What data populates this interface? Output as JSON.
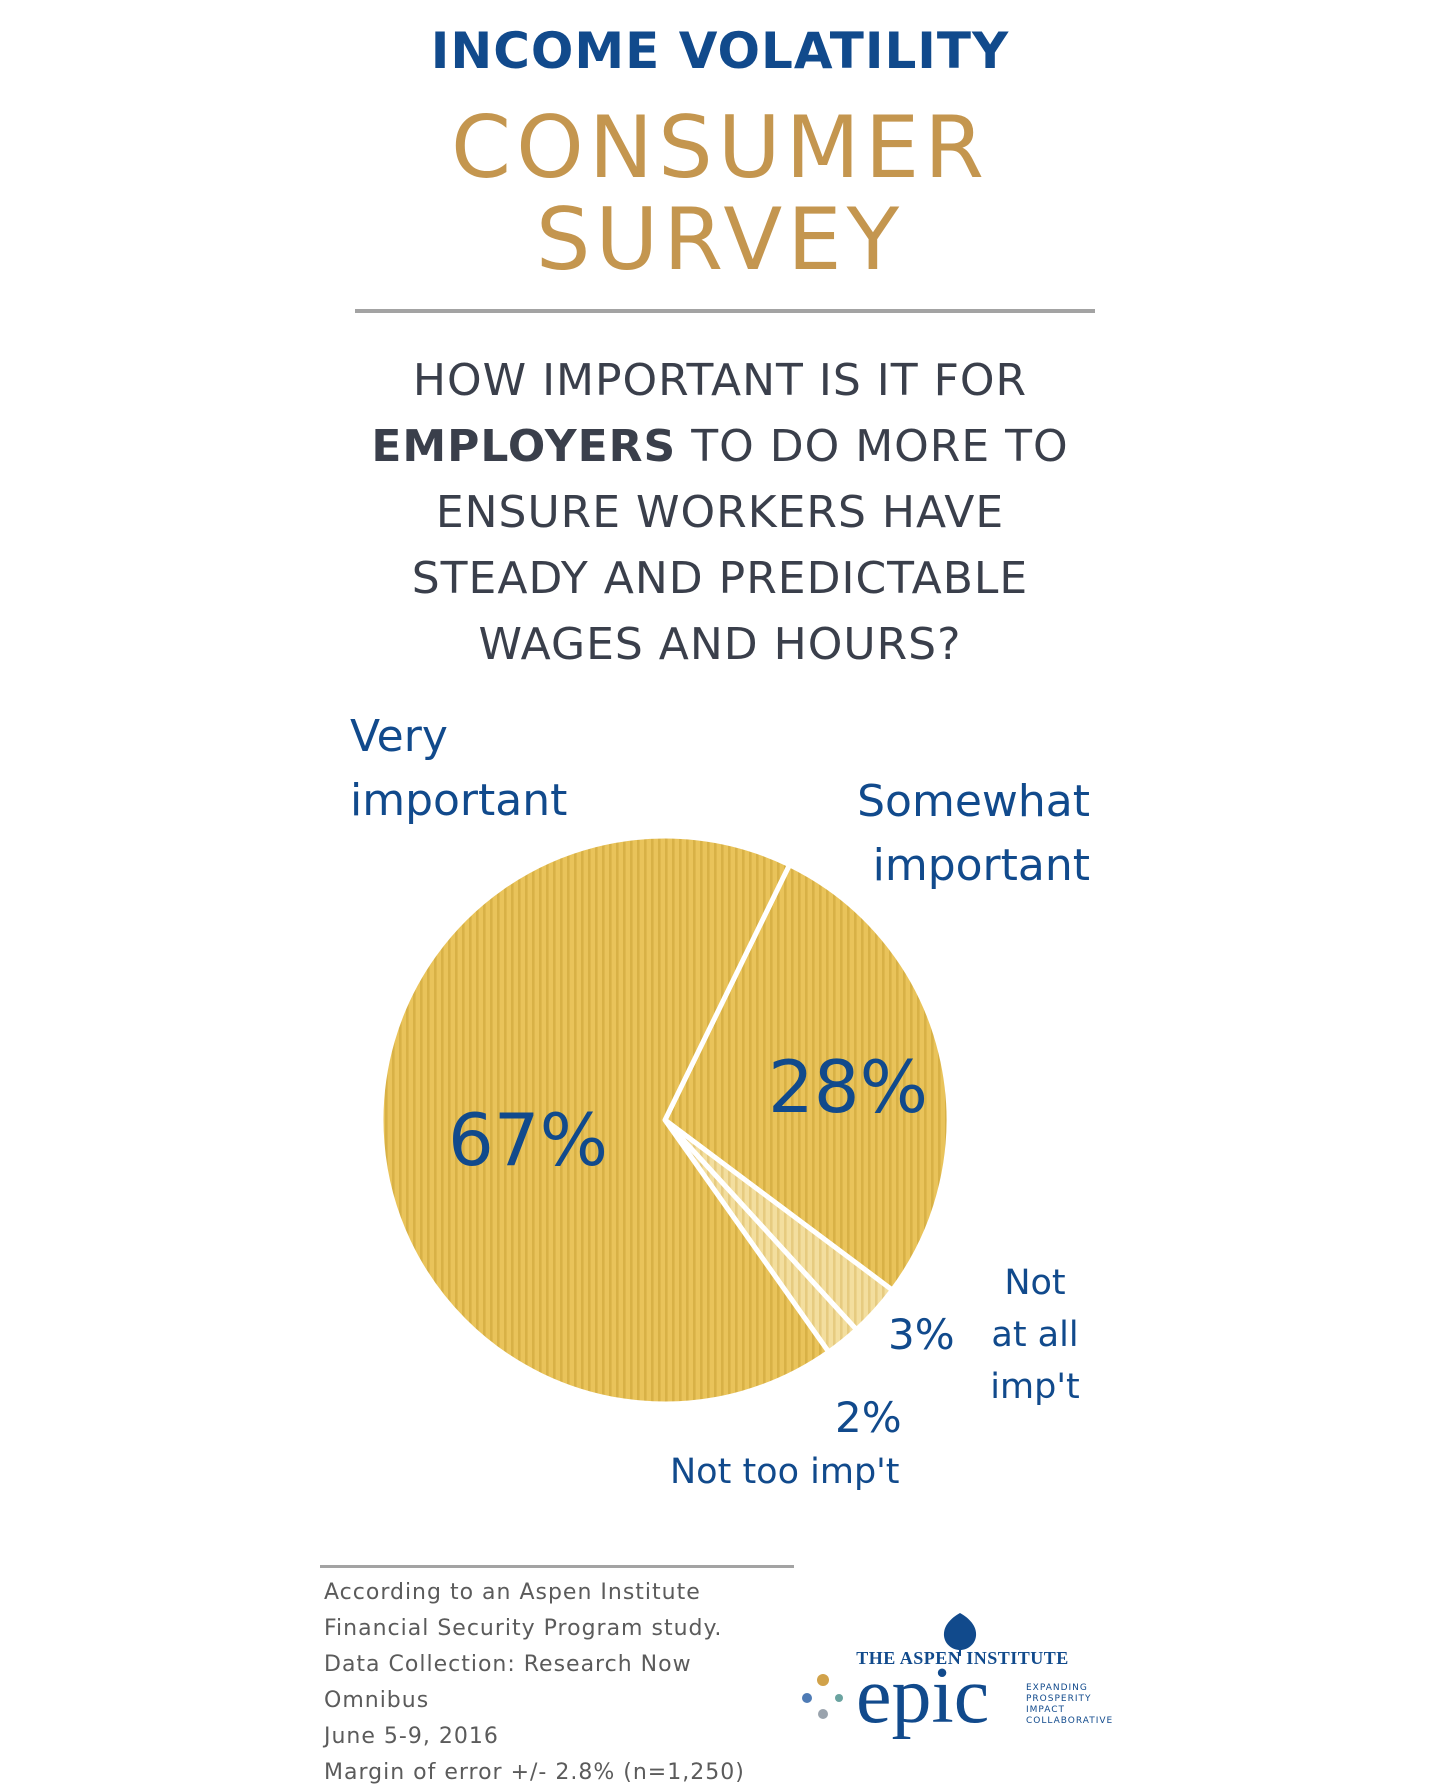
{
  "header": {
    "title_top": "INCOME VOLATILITY",
    "title_line1": "CONSUMER",
    "title_line2": "SURVEY"
  },
  "question": {
    "pre": "HOW IMPORTANT IS IT FOR",
    "bold": "EMPLOYERS",
    "post_line2": " TO DO MORE TO",
    "line3": "ENSURE WORKERS HAVE",
    "line4": "STEADY AND PREDICTABLE",
    "line5": "WAGES AND HOURS?"
  },
  "colors": {
    "navy": "#114a8c",
    "gold": "#c4964f",
    "text_dark": "#3a3f4b",
    "rule": "#a3a3a3",
    "pie_main": "#e9c35a",
    "pie_light": "#f3de9e",
    "pie_stripe": "#c9a235",
    "footer_text": "#5b5b5b",
    "dot_gold": "#d1a24a",
    "dot_blue": "#4e7bb5",
    "dot_gray": "#9aa3ad",
    "dot_teal": "#6aa3a0"
  },
  "chart_data": {
    "type": "pie",
    "unit": "%",
    "slices": [
      {
        "label_line1": "Very",
        "label_line2": "important",
        "value": 67,
        "value_label": "67%"
      },
      {
        "label_line1": "Somewhat",
        "label_line2": "important",
        "value": 28,
        "value_label": "28%"
      },
      {
        "label_line1": "Not",
        "label_line2": "at all",
        "label_line3": "imp't",
        "value": 3,
        "value_label": "3%"
      },
      {
        "label_line1": "Not too imp't",
        "value": 2,
        "value_label": "2%"
      }
    ]
  },
  "footer": {
    "line1": "According to an Aspen Institute",
    "line2": "Financial Security Program study.",
    "line3": "Data Collection: Research Now Omnibus",
    "line4": "June 5-9, 2016",
    "line5": "Margin of error +/- 2.8% (n=1,250)"
  },
  "logo": {
    "aspen_name": "THE ASPEN INSTITUTE",
    "epic_word": "epic",
    "tag1": "EXPANDING",
    "tag2": "PROSPERITY",
    "tag3": "IMPACT",
    "tag4": "COLLABORATIVE"
  }
}
